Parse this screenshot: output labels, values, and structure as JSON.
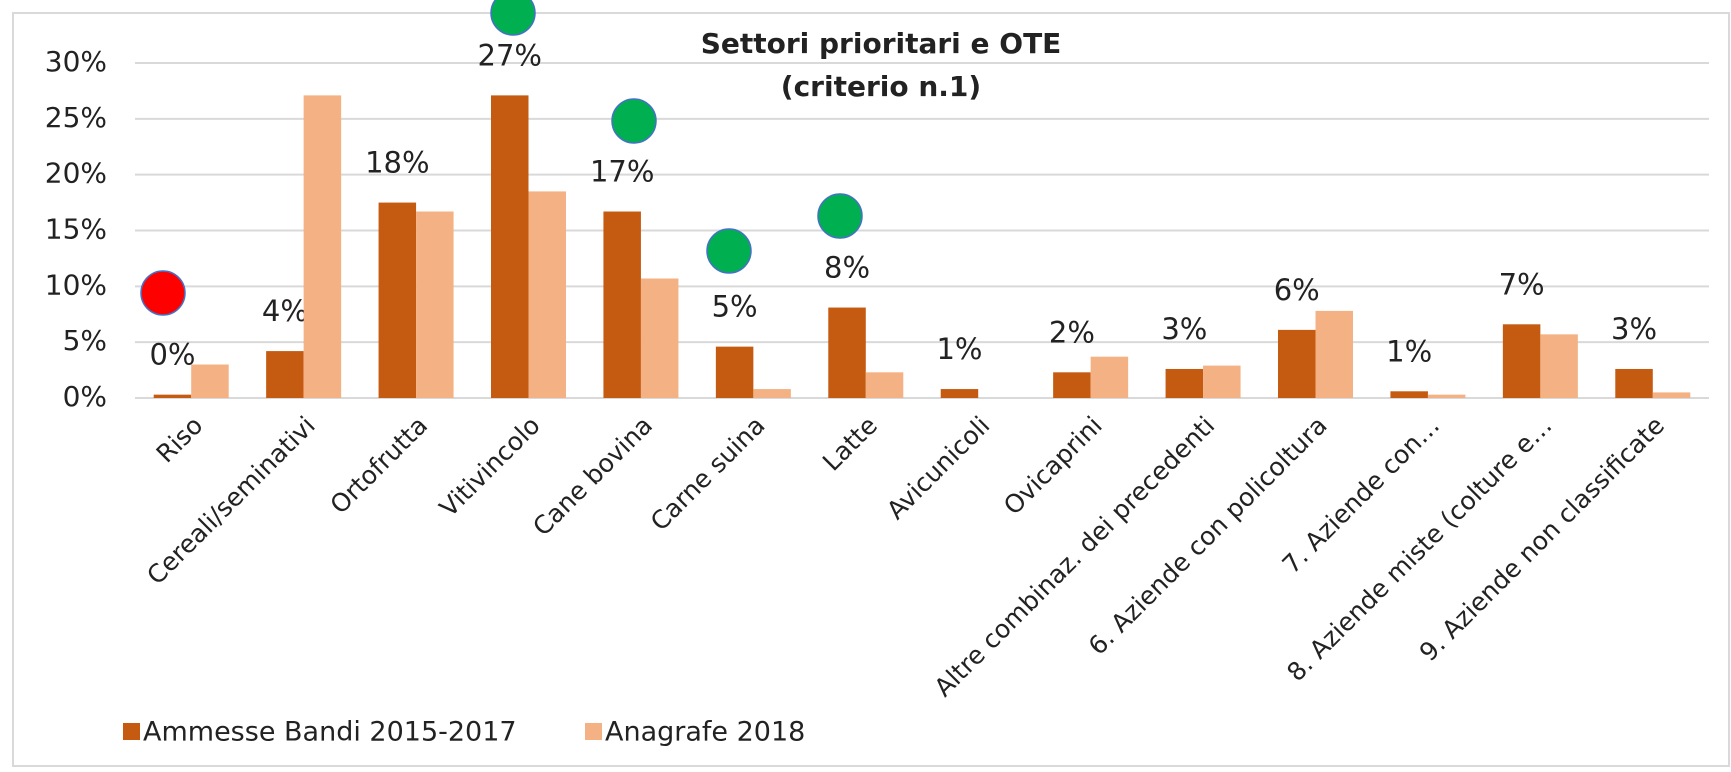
{
  "chart_data": {
    "type": "bar",
    "title": "Settori prioritari e OTE",
    "subtitle": "(criterio n.1)",
    "categories": [
      "Riso",
      "Cereali/seminativi",
      "Ortofrutta",
      "Vitivincolo",
      "Cane bovina",
      "Carne suina",
      "Latte",
      "Avicunicoli",
      "Ovicaprini",
      "Altre combinaz. dei precedenti",
      "6. Aziende con policoltura",
      "7. Aziende con…",
      "8. Aziende miste (colture e…",
      "9. Aziende non classificate"
    ],
    "series": [
      {
        "name": "Ammesse Bandi 2015-2017",
        "color": "#c55a11",
        "values": [
          0.3,
          4.2,
          17.5,
          27.1,
          16.7,
          4.6,
          8.1,
          0.8,
          2.3,
          2.6,
          6.1,
          0.6,
          6.6,
          2.6
        ],
        "value_labels": [
          "0%",
          "4%",
          "18%",
          "27%",
          "17%",
          "5%",
          "8%",
          "1%",
          "2%",
          "3%",
          "6%",
          "1%",
          "7%",
          "3%"
        ]
      },
      {
        "name": "Anagrafe 2018",
        "color": "#f4b183",
        "values": [
          3.0,
          27.1,
          16.7,
          18.5,
          10.7,
          0.8,
          2.3,
          0,
          3.7,
          2.9,
          7.8,
          0.3,
          5.7,
          0.5
        ]
      }
    ],
    "ylim": [
      0,
      30
    ],
    "yticks": [
      {
        "value": 0,
        "label": "0%"
      },
      {
        "value": 5,
        "label": "5%"
      },
      {
        "value": 10,
        "label": "10%"
      },
      {
        "value": 15,
        "label": "15%"
      },
      {
        "value": 20,
        "label": "20%"
      },
      {
        "value": 25,
        "label": "25%"
      },
      {
        "value": 30,
        "label": "30%"
      }
    ],
    "grid": true,
    "legend": "bottom"
  }
}
